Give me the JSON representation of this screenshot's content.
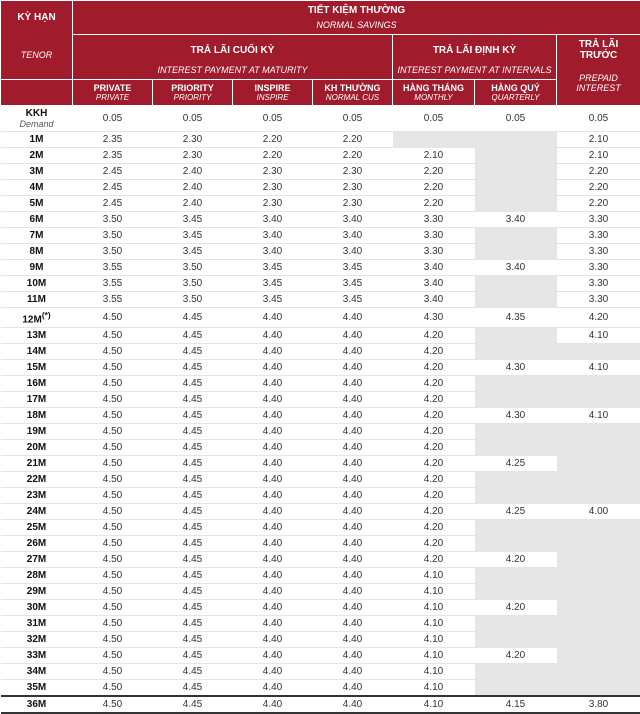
{
  "header": {
    "tenor_vi": "KỲ HẠN",
    "tenor_en": "TENOR",
    "normal_savings_vi": "TIẾT KIỆM THƯỜNG",
    "normal_savings_en": "NORMAL SAVINGS",
    "maturity_vi": "TRẢ LÃI CUỐI KỲ",
    "maturity_en": "INTEREST PAYMENT AT MATURITY",
    "intervals_vi": "TRẢ LÃI ĐỊNH KỲ",
    "intervals_en": "INTEREST PAYMENT AT INTERVALS",
    "prepaid_vi": "TRẢ LÃI TRƯỚC",
    "prepaid_en": "PREPAID INTEREST",
    "cols": {
      "private_vi": "PRIVATE",
      "private_en": "PRIVATE",
      "priority_vi": "PRIORITY",
      "priority_en": "PRIORITY",
      "inspire_vi": "INSPIRE",
      "inspire_en": "INSPIRE",
      "normalcus_vi": "KH THƯỜNG",
      "normalcus_en": "NORMAL CUS",
      "monthly_vi": "HÀNG THÁNG",
      "monthly_en": "MONTHLY",
      "quarterly_vi": "HÀNG QUÝ",
      "quarterly_en": "QUARTERLY"
    }
  },
  "rows": [
    {
      "tenor": "KKH",
      "tenor_en": "Demand",
      "v": [
        "0.05",
        "0.05",
        "0.05",
        "0.05",
        "0.05",
        "0.05",
        "0.05"
      ]
    },
    {
      "tenor": "1M",
      "v": [
        "2.35",
        "2.30",
        "2.20",
        "2.20",
        "",
        "",
        "2.10"
      ]
    },
    {
      "tenor": "2M",
      "v": [
        "2.35",
        "2.30",
        "2.20",
        "2.20",
        "2.10",
        "",
        "2.10"
      ]
    },
    {
      "tenor": "3M",
      "v": [
        "2.45",
        "2.40",
        "2.30",
        "2.30",
        "2.20",
        "",
        "2.20"
      ]
    },
    {
      "tenor": "4M",
      "v": [
        "2.45",
        "2.40",
        "2.30",
        "2.30",
        "2.20",
        "",
        "2.20"
      ]
    },
    {
      "tenor": "5M",
      "v": [
        "2.45",
        "2.40",
        "2.30",
        "2.30",
        "2.20",
        "",
        "2.20"
      ]
    },
    {
      "tenor": "6M",
      "v": [
        "3.50",
        "3.45",
        "3.40",
        "3.40",
        "3.30",
        "3.40",
        "3.30"
      ]
    },
    {
      "tenor": "7M",
      "v": [
        "3.50",
        "3.45",
        "3.40",
        "3.40",
        "3.30",
        "",
        "3.30"
      ]
    },
    {
      "tenor": "8M",
      "v": [
        "3.50",
        "3.45",
        "3.40",
        "3.40",
        "3.30",
        "",
        "3.30"
      ]
    },
    {
      "tenor": "9M",
      "v": [
        "3.55",
        "3.50",
        "3.45",
        "3.45",
        "3.40",
        "3.40",
        "3.30"
      ]
    },
    {
      "tenor": "10M",
      "v": [
        "3.55",
        "3.50",
        "3.45",
        "3.45",
        "3.40",
        "",
        "3.30"
      ]
    },
    {
      "tenor": "11M",
      "v": [
        "3.55",
        "3.50",
        "3.45",
        "3.45",
        "3.40",
        "",
        "3.30"
      ]
    },
    {
      "tenor": "12M(*)",
      "v": [
        "4.50",
        "4.45",
        "4.40",
        "4.40",
        "4.30",
        "4.35",
        "4.20"
      ]
    },
    {
      "tenor": "13M",
      "v": [
        "4.50",
        "4.45",
        "4.40",
        "4.40",
        "4.20",
        "",
        "4.10"
      ]
    },
    {
      "tenor": "14M",
      "v": [
        "4.50",
        "4.45",
        "4.40",
        "4.40",
        "4.20",
        "",
        ""
      ]
    },
    {
      "tenor": "15M",
      "v": [
        "4.50",
        "4.45",
        "4.40",
        "4.40",
        "4.20",
        "4.30",
        "4.10"
      ]
    },
    {
      "tenor": "16M",
      "v": [
        "4.50",
        "4.45",
        "4.40",
        "4.40",
        "4.20",
        "",
        ""
      ]
    },
    {
      "tenor": "17M",
      "v": [
        "4.50",
        "4.45",
        "4.40",
        "4.40",
        "4.20",
        "",
        ""
      ]
    },
    {
      "tenor": "18M",
      "v": [
        "4.50",
        "4.45",
        "4.40",
        "4.40",
        "4.20",
        "4.30",
        "4.10"
      ]
    },
    {
      "tenor": "19M",
      "v": [
        "4.50",
        "4.45",
        "4.40",
        "4.40",
        "4.20",
        "",
        ""
      ]
    },
    {
      "tenor": "20M",
      "v": [
        "4.50",
        "4.45",
        "4.40",
        "4.40",
        "4.20",
        "",
        ""
      ]
    },
    {
      "tenor": "21M",
      "v": [
        "4.50",
        "4.45",
        "4.40",
        "4.40",
        "4.20",
        "4.25",
        ""
      ]
    },
    {
      "tenor": "22M",
      "v": [
        "4.50",
        "4.45",
        "4.40",
        "4.40",
        "4.20",
        "",
        ""
      ]
    },
    {
      "tenor": "23M",
      "v": [
        "4.50",
        "4.45",
        "4.40",
        "4.40",
        "4.20",
        "",
        ""
      ]
    },
    {
      "tenor": "24M",
      "v": [
        "4.50",
        "4.45",
        "4.40",
        "4.40",
        "4.20",
        "4.25",
        "4.00"
      ]
    },
    {
      "tenor": "25M",
      "v": [
        "4.50",
        "4.45",
        "4.40",
        "4.40",
        "4.20",
        "",
        ""
      ]
    },
    {
      "tenor": "26M",
      "v": [
        "4.50",
        "4.45",
        "4.40",
        "4.40",
        "4.20",
        "",
        ""
      ]
    },
    {
      "tenor": "27M",
      "v": [
        "4.50",
        "4.45",
        "4.40",
        "4.40",
        "4.20",
        "4.20",
        ""
      ]
    },
    {
      "tenor": "28M",
      "v": [
        "4.50",
        "4.45",
        "4.40",
        "4.40",
        "4.10",
        "",
        ""
      ]
    },
    {
      "tenor": "29M",
      "v": [
        "4.50",
        "4.45",
        "4.40",
        "4.40",
        "4.10",
        "",
        ""
      ]
    },
    {
      "tenor": "30M",
      "v": [
        "4.50",
        "4.45",
        "4.40",
        "4.40",
        "4.10",
        "4.20",
        ""
      ]
    },
    {
      "tenor": "31M",
      "v": [
        "4.50",
        "4.45",
        "4.40",
        "4.40",
        "4.10",
        "",
        ""
      ]
    },
    {
      "tenor": "32M",
      "v": [
        "4.50",
        "4.45",
        "4.40",
        "4.40",
        "4.10",
        "",
        ""
      ]
    },
    {
      "tenor": "33M",
      "v": [
        "4.50",
        "4.45",
        "4.40",
        "4.40",
        "4.10",
        "4.20",
        ""
      ]
    },
    {
      "tenor": "34M",
      "v": [
        "4.50",
        "4.45",
        "4.40",
        "4.40",
        "4.10",
        "",
        ""
      ]
    },
    {
      "tenor": "35M",
      "v": [
        "4.50",
        "4.45",
        "4.40",
        "4.40",
        "4.10",
        "",
        ""
      ]
    },
    {
      "tenor": "36M",
      "v": [
        "4.50",
        "4.45",
        "4.40",
        "4.40",
        "4.10",
        "4.15",
        "3.80"
      ],
      "last": true
    }
  ],
  "style": {
    "header_bg": "#a01b2b",
    "header_fg": "#ffffff",
    "blank_bg": "#e6e6e6",
    "border_color": "#e5e5e5"
  }
}
